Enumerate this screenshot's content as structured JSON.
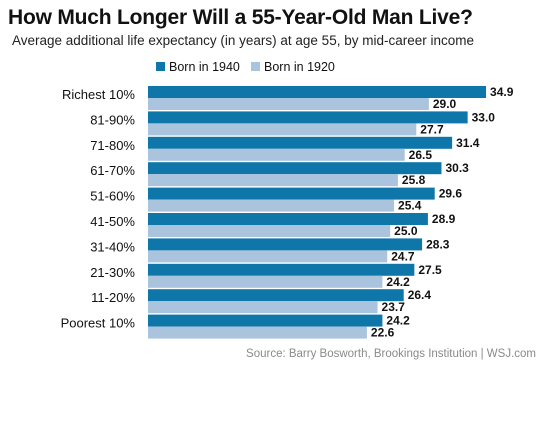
{
  "chart_data": {
    "type": "bar",
    "orientation": "horizontal",
    "title": "How Much Longer Will a 55-Year-Old Man Live?",
    "subtitle": "Average additional life expectancy (in years) at age 55, by mid-career income",
    "categories": [
      "Richest 10%",
      "81-90%",
      "71-80%",
      "61-70%",
      "51-60%",
      "41-50%",
      "31-40%",
      "21-30%",
      "11-20%",
      "Poorest 10%"
    ],
    "series": [
      {
        "name": "Born in 1940",
        "color": "#0e76a8",
        "values": [
          34.9,
          33.0,
          31.4,
          30.3,
          29.6,
          28.9,
          28.3,
          27.5,
          26.4,
          24.2
        ]
      },
      {
        "name": "Born in 1920",
        "color": "#a9c4dc",
        "values": [
          29.0,
          27.7,
          26.5,
          25.8,
          25.4,
          25.0,
          24.7,
          24.2,
          23.7,
          22.6
        ]
      }
    ],
    "xlim": [
      0,
      35
    ],
    "grid": false,
    "legend_position": "top-left",
    "value_labels": true
  },
  "source": "Source: Barry Bosworth, Brookings Institution  |  WSJ.com"
}
